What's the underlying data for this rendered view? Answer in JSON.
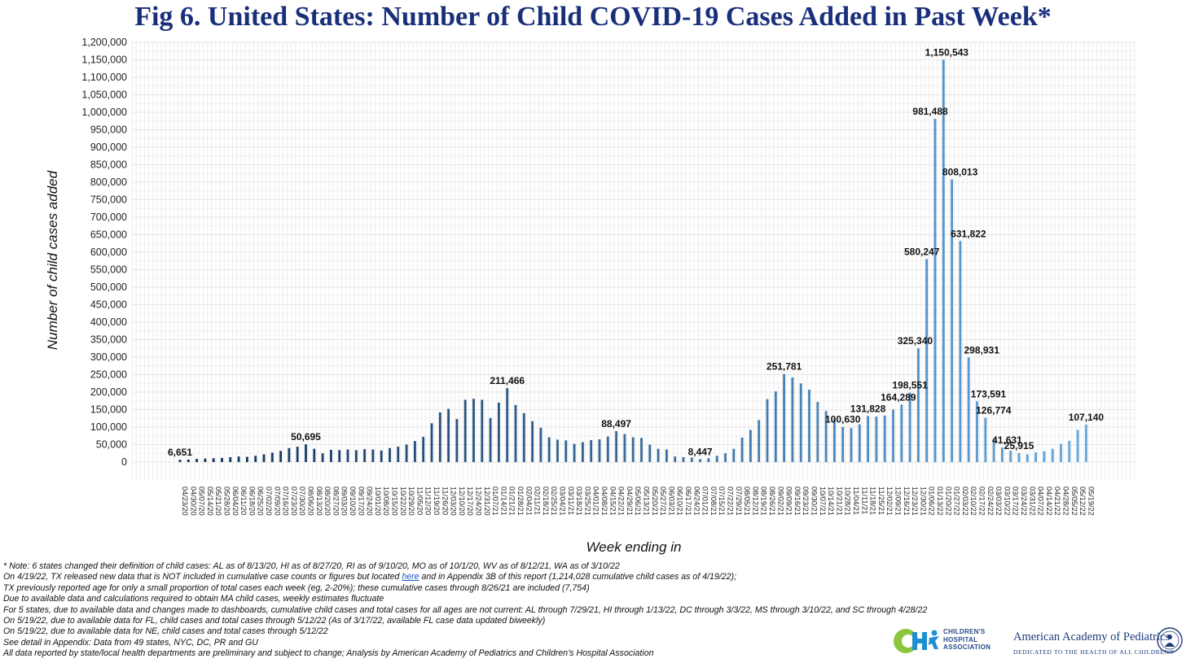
{
  "title": "Fig 6. United States: Number of Child COVID-19 Cases Added in Past Week*",
  "colors": {
    "title": "#1a2f7a",
    "bar_dark": "#0d2d57",
    "bar_light": "#63a8e0",
    "grid": "#e4e4e4"
  },
  "chart_data": {
    "type": "bar",
    "ylabel": "Number of child cases added",
    "xlabel": "Week ending in",
    "ylim": [
      0,
      1200000
    ],
    "ytick_step": 50000,
    "grid": true,
    "gradient": "bars shade from dark navy (2020) to light blue (2022)",
    "categories": [
      "04/23/20",
      "04/30/20",
      "05/07/20",
      "05/14/20",
      "05/21/20",
      "05/28/20",
      "06/04/20",
      "06/11/20",
      "06/18/20",
      "06/25/20",
      "07/02/20",
      "07/09/20",
      "07/16/20",
      "07/23/20",
      "07/30/20",
      "08/06/20",
      "08/13/20",
      "08/20/20",
      "08/27/20",
      "09/03/20",
      "09/10/20",
      "09/17/20",
      "09/24/20",
      "10/01/20",
      "10/08/20",
      "10/15/20",
      "10/22/20",
      "10/29/20",
      "11/05/20",
      "11/12/20",
      "11/19/20",
      "11/26/20",
      "12/03/20",
      "12/10/20",
      "12/17/20",
      "12/24/20",
      "12/31/20",
      "01/07/21",
      "01/14/21",
      "01/21/21",
      "01/28/21",
      "02/04/21",
      "02/11/21",
      "02/18/21",
      "02/25/21",
      "03/04/21",
      "03/11/21",
      "03/18/21",
      "03/25/21",
      "04/01/21",
      "04/08/21",
      "04/15/21",
      "04/22/21",
      "04/29/21",
      "05/06/21",
      "05/13/21",
      "05/20/21",
      "05/27/21",
      "06/03/21",
      "06/10/21",
      "06/17/21",
      "06/24/21",
      "07/01/21",
      "07/08/21",
      "07/15/21",
      "07/22/21",
      "07/29/21",
      "08/05/21",
      "08/12/21",
      "08/19/21",
      "08/26/21",
      "09/02/21",
      "09/09/21",
      "09/16/21",
      "09/23/21",
      "09/30/21",
      "10/07/21",
      "10/14/21",
      "10/21/21",
      "10/28/21",
      "11/04/21",
      "11/11/21",
      "11/18/21",
      "11/25/21",
      "12/02/21",
      "12/09/21",
      "12/16/21",
      "12/23/21",
      "12/30/21",
      "01/06/22",
      "01/13/22",
      "01/20/22",
      "01/27/22",
      "02/03/22",
      "02/10/22",
      "02/17/22",
      "02/24/22",
      "03/03/22",
      "03/10/22",
      "03/17/22",
      "03/24/22",
      "03/31/22",
      "04/07/22",
      "04/14/22",
      "04/21/22",
      "04/28/22",
      "05/05/22",
      "05/12/22",
      "05/19/22"
    ],
    "values": [
      6651,
      7000,
      9000,
      10000,
      11000,
      12000,
      14000,
      16000,
      15000,
      18000,
      22000,
      27000,
      32000,
      40000,
      44000,
      50695,
      38000,
      25000,
      35000,
      34000,
      36000,
      34000,
      37000,
      36000,
      33000,
      40000,
      44000,
      50000,
      60000,
      72000,
      111000,
      142000,
      152000,
      123000,
      178000,
      181000,
      178000,
      126000,
      170000,
      211466,
      163000,
      140000,
      117000,
      98000,
      71000,
      64000,
      62000,
      52000,
      57000,
      63000,
      65000,
      73000,
      88497,
      80000,
      71000,
      69000,
      50000,
      38000,
      36000,
      16000,
      14000,
      13000,
      8447,
      11000,
      18000,
      25000,
      38000,
      70000,
      92000,
      120000,
      180000,
      202000,
      251781,
      242000,
      225000,
      207000,
      172000,
      146000,
      124000,
      100630,
      97000,
      108000,
      131828,
      130000,
      133000,
      150000,
      164289,
      198551,
      325340,
      580247,
      981488,
      1150543,
      808013,
      631822,
      298931,
      173591,
      126774,
      67000,
      41631,
      33000,
      25915,
      22000,
      28000,
      31000,
      38000,
      52000,
      61000,
      92000,
      107140
    ],
    "data_labels": [
      {
        "category": "04/23/20",
        "text": "6,651"
      },
      {
        "category": "08/06/20",
        "text": "50,695"
      },
      {
        "category": "01/21/21",
        "text": "211,466"
      },
      {
        "category": "04/22/21",
        "text": "88,497"
      },
      {
        "category": "07/01/21",
        "text": "8,447"
      },
      {
        "category": "09/09/21",
        "text": "251,781"
      },
      {
        "category": "10/28/21",
        "text": "100,630"
      },
      {
        "category": "11/18/21",
        "text": "131,828"
      },
      {
        "category": "12/16/21",
        "text": "164,289"
      },
      {
        "category": "12/23/21",
        "text": "198,551"
      },
      {
        "category": "12/30/21",
        "text": "325,340"
      },
      {
        "category": "01/06/22",
        "text": "580,247"
      },
      {
        "category": "01/13/22",
        "text": "981,488"
      },
      {
        "category": "01/20/22",
        "text": "1,150,543"
      },
      {
        "category": "01/27/22",
        "text": "808,013"
      },
      {
        "category": "02/03/22",
        "text": "631,822"
      },
      {
        "category": "02/10/22",
        "text": "298,931"
      },
      {
        "category": "02/17/22",
        "text": "173,591"
      },
      {
        "category": "02/24/22",
        "text": "126,774"
      },
      {
        "category": "03/10/22",
        "text": "41,631"
      },
      {
        "category": "03/24/22",
        "text": "25,915"
      },
      {
        "category": "05/19/22",
        "text": "107,140"
      }
    ]
  },
  "notes": {
    "line1": "* Note: 6 states changed their definition of child cases: AL as of 8/13/20, HI as of 8/27/20, RI as of 9/10/20, MO as of 10/1/20, WV as of 8/12/21, WA as of 3/10/22",
    "line2_a": "On 4/19/22, TX released new data that is NOT included in cumulative case counts or figures but located ",
    "line2_link": "here",
    "line2_b": " and in Appendix 3B of this report (1,214,028 cumulative child cases as of 4/19/22);",
    "line3": "TX previously reported age for only a small proportion of total cases each week (eg, 2-20%); these cumulative cases through 8/26/21 are included (7,754)",
    "line4": "Due to available data and calculations required to obtain MA child cases, weekly estimates fluctuate",
    "line5": "For 5 states, due to available data and changes made to dashboards, cumulative child cases and total cases for all ages are not current: AL through 7/29/21, HI through 1/13/22, DC through 3/3/22, MS through 3/10/22, and SC through 4/28/22",
    "line6": "On 5/19/22, due to available data for FL, child cases and total cases through 5/12/22 (As of 3/17/22, available FL case data updated biweekly)",
    "line7": "On 5/19/22, due to available data for NE, child cases and total cases through 5/12/22",
    "line8": "See detail in Appendix: Data from 49 states, NYC, DC, PR and GU",
    "line9": "All data reported by state/local health departments are preliminary and subject to change; Analysis by American Academy of Pediatrics and Children’s Hospital Association"
  },
  "logos": {
    "chha_line1": "CHILDREN'S",
    "chha_line2": "HOSPITAL",
    "chha_line3": "ASSOCIATION",
    "aap_name": "American Academy of Pediatrics",
    "aap_tagline": "DEDICATED TO THE HEALTH OF ALL CHILDREN®"
  }
}
